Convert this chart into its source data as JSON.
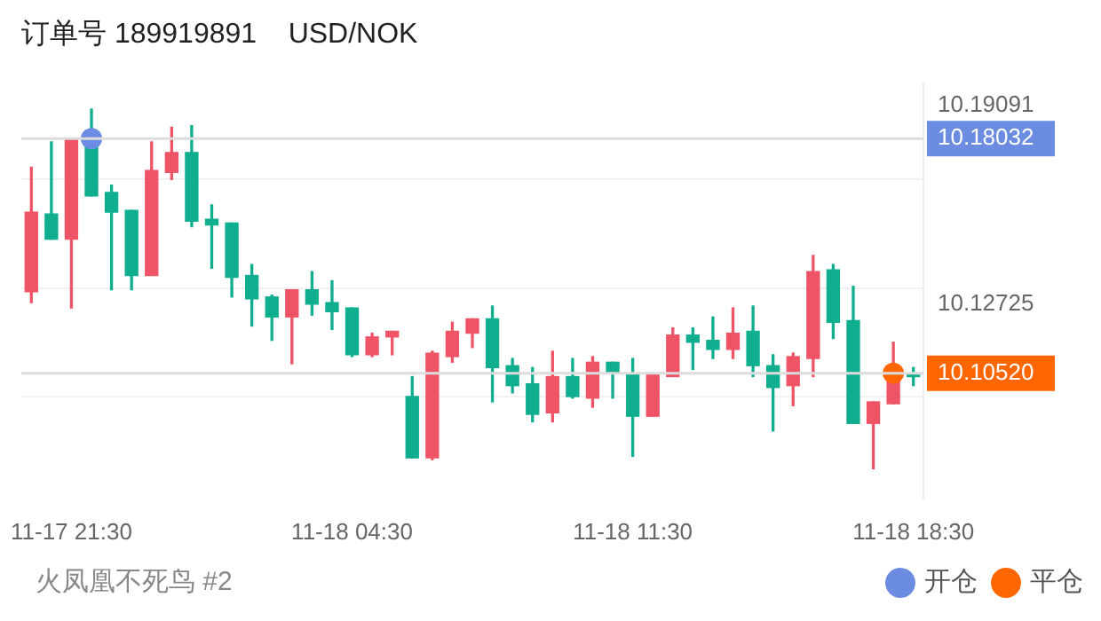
{
  "chart_data": {
    "type": "candlestick",
    "title": "订单号 189919891    USD/NOK",
    "categories": [
      null,
      null,
      "11-17 21:30",
      null,
      null,
      null,
      null,
      null,
      null,
      null,
      null,
      null,
      null,
      null,
      null,
      null,
      "11-18 04:30",
      null,
      null,
      null,
      null,
      null,
      null,
      null,
      null,
      null,
      null,
      null,
      null,
      null,
      "11-18 11:30",
      null,
      null,
      null,
      null,
      null,
      null,
      null,
      null,
      null,
      null,
      null,
      null,
      null,
      "11-18 18:30"
    ],
    "series": [
      {
        "ohlc": [
          [
            10.1313,
            10.1712,
            10.1278,
            10.1568
          ],
          [
            10.1562,
            10.1793,
            10.1481,
            10.1481
          ],
          [
            10.1481,
            10.1803,
            10.1261,
            10.1803
          ],
          [
            10.1803,
            10.1898,
            10.162,
            10.162
          ],
          [
            10.1631,
            10.1654,
            10.1319,
            10.1568
          ],
          [
            10.1573,
            10.1573,
            10.1319,
            10.1365
          ],
          [
            10.1365,
            10.1793,
            10.1365,
            10.1701
          ],
          [
            10.1695,
            10.184,
            10.1672,
            10.1759
          ],
          [
            10.1759,
            10.1845,
            10.1521,
            10.1539
          ],
          [
            10.1545,
            10.1591,
            10.1388,
            10.1527
          ],
          [
            10.1533,
            10.1533,
            10.1296,
            10.1359
          ],
          [
            10.1365,
            10.14,
            10.1203,
            10.129
          ],
          [
            10.1296,
            10.1302,
            10.1157,
            10.1232
          ],
          [
            10.1232,
            10.1319,
            10.1082,
            10.1319
          ],
          [
            10.1319,
            10.1377,
            10.1238,
            10.1273
          ],
          [
            10.1278,
            10.1348,
            10.1192,
            10.1249
          ],
          [
            10.1261,
            10.1261,
            10.1105,
            10.1111
          ],
          [
            10.1111,
            10.118,
            10.1105,
            10.1168
          ],
          [
            10.1168,
            10.1186,
            10.1111,
            10.1186
          ],
          [
            10.0977,
            10.1041,
            10.0781,
            10.0781
          ],
          [
            10.0781,
            10.1122,
            10.0775,
            10.1116
          ],
          [
            10.1105,
            10.1215,
            10.1087,
            10.1186
          ],
          [
            10.118,
            10.1226,
            10.1134,
            10.1226
          ],
          [
            10.1226,
            10.1267,
            10.096,
            10.107
          ],
          [
            10.1076,
            10.1099,
            10.0989,
            10.1012
          ],
          [
            10.1018,
            10.107,
            10.0896,
            10.092
          ],
          [
            10.0925,
            10.1122,
            10.0896,
            10.1041
          ],
          [
            10.1041,
            10.1099,
            10.0972,
            10.0977
          ],
          [
            10.0972,
            10.1105,
            10.0943,
            10.1087
          ],
          [
            10.1087,
            10.1087,
            10.0972,
            10.1053
          ],
          [
            10.1047,
            10.1099,
            10.0786,
            10.0914
          ],
          [
            10.0914,
            10.1053,
            10.0914,
            10.1047
          ],
          [
            10.1041,
            10.1197,
            10.1041,
            10.1174
          ],
          [
            10.1174,
            10.1197,
            10.1064,
            10.1151
          ],
          [
            10.1157,
            10.1232,
            10.1099,
            10.1128
          ],
          [
            10.1128,
            10.1261,
            10.1099,
            10.118
          ],
          [
            10.1186,
            10.1267,
            10.1041,
            10.1076
          ],
          [
            10.1076,
            10.1111,
            10.0867,
            10.1006
          ],
          [
            10.1012,
            10.1116,
            10.0948,
            10.1105
          ],
          [
            10.1099,
            10.1429,
            10.1041,
            10.1377
          ],
          [
            10.1383,
            10.14,
            10.1163,
            10.1215
          ],
          [
            10.122,
            10.133,
            10.0891,
            10.0891
          ],
          [
            10.0891,
            10.096,
            10.0746,
            10.096
          ],
          [
            10.0954,
            10.1151,
            10.0954,
            10.1053
          ],
          [
            10.1047,
            10.107,
            10.1012,
            10.1041
          ]
        ],
        "colors": [
          "#ef5466",
          "#0fae8f",
          "#ef5466",
          "#0fae8f",
          "#0fae8f",
          "#0fae8f",
          "#ef5466",
          "#ef5466",
          "#0fae8f",
          "#0fae8f",
          "#0fae8f",
          "#0fae8f",
          "#0fae8f",
          "#ef5466",
          "#0fae8f",
          "#0fae8f",
          "#0fae8f",
          "#ef5466",
          "#ef5466",
          "#0fae8f",
          "#ef5466",
          "#ef5466",
          "#ef5466",
          "#0fae8f",
          "#0fae8f",
          "#0fae8f",
          "#ef5466",
          "#0fae8f",
          "#ef5466",
          "#0fae8f",
          "#0fae8f",
          "#ef5466",
          "#ef5466",
          "#0fae8f",
          "#0fae8f",
          "#ef5466",
          "#0fae8f",
          "#0fae8f",
          "#ef5466",
          "#ef5466",
          "#0fae8f",
          "#0fae8f",
          "#ef5466",
          "#ef5466",
          "#0fae8f"
        ]
      },
      {
        "type": "scatter",
        "name": "开仓",
        "color": "#6b8ce0",
        "values": [
          null,
          null,
          null,
          10.1803,
          null,
          null,
          null,
          null,
          null,
          null,
          null,
          null,
          null,
          null,
          null,
          null,
          null,
          null,
          null,
          null,
          null,
          null,
          null,
          null,
          null,
          null,
          null,
          null,
          null,
          null,
          null,
          null,
          null,
          null,
          null,
          null,
          null,
          null,
          null,
          null,
          null,
          null,
          null,
          null,
          null
        ]
      },
      {
        "type": "scatter",
        "name": "平仓",
        "color": "#ff6600",
        "values": [
          null,
          null,
          null,
          null,
          null,
          null,
          null,
          null,
          null,
          null,
          null,
          null,
          null,
          null,
          null,
          null,
          null,
          null,
          null,
          null,
          null,
          null,
          null,
          null,
          null,
          null,
          null,
          null,
          null,
          null,
          null,
          null,
          null,
          null,
          null,
          null,
          null,
          null,
          null,
          null,
          null,
          null,
          null,
          10.1052,
          null
        ]
      }
    ],
    "ylim": [
      10.0648,
      10.1979
    ],
    "yticks": [
      10.19091,
      {
        "value": 10.1672,
        "label": null
      },
      {
        "value": 10.1325,
        "label": null
      },
      10.12725,
      {
        "value": 10.0977,
        "label": null
      }
    ],
    "ref_lines": [
      {
        "axis": "y",
        "value": 10.18032,
        "label": "10.18032"
      },
      {
        "axis": "y",
        "value": 10.1052,
        "label": "10.10520"
      }
    ],
    "annotations": [
      "火凤凰不死鸟 #2"
    ],
    "grid": "y",
    "legend": "bottom right",
    "marker": "circle"
  }
}
